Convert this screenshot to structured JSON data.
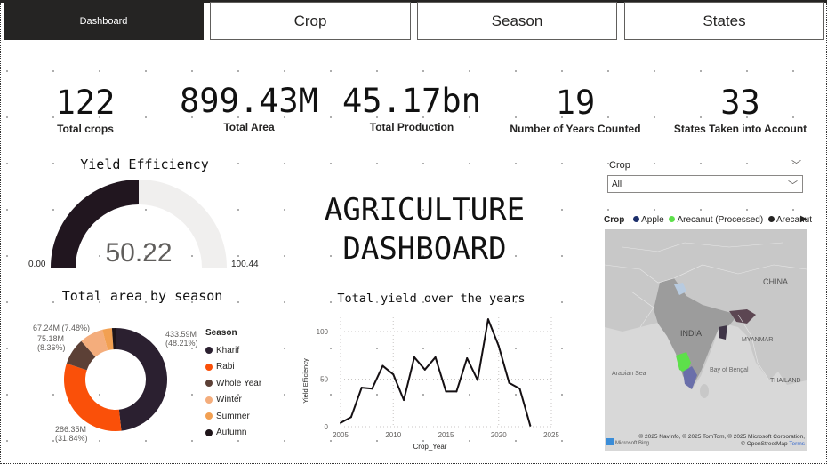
{
  "nav": {
    "dashboard": "Dashboard",
    "crop": "Crop",
    "season": "Season",
    "states": "States"
  },
  "kpis": [
    {
      "value": "122",
      "label": "Total crops"
    },
    {
      "value": "899.43M",
      "label": "Total Area"
    },
    {
      "value": "45.17bn",
      "label": "Total Production"
    },
    {
      "value": "19",
      "label": "Number of Years Counted"
    },
    {
      "value": "33",
      "label": "States Taken into Account"
    }
  ],
  "gauge": {
    "title": "Yield Efficiency",
    "value": 50.22,
    "value_label": "50.22",
    "min_label": "0.00",
    "max_label": "100.44",
    "fill_color": "#21161f",
    "track_color": "#f0efee"
  },
  "dashboard_title": {
    "line1": "AGRICULTURE",
    "line2": "DASHBOARD"
  },
  "slicer": {
    "label": "Crop",
    "value": "All"
  },
  "map": {
    "legend_title": "Crop",
    "legend_items": [
      {
        "name": "Apple",
        "color": "#1b2e6b"
      },
      {
        "name": "Arecanut (Processed)",
        "color": "#5de04a"
      },
      {
        "name": "Arecanut",
        "color": "#252423"
      }
    ],
    "labels": {
      "china": "CHINA",
      "india": "INDIA",
      "myanmar": "MYANMAR",
      "thailand": "THAILAND",
      "arabian_sea": "Arabian Sea",
      "bay_of_bengal": "Bay\nof Bengal"
    },
    "attribution": "© 2025 NavInfo, © 2025 TomTom, © 2025 Microsoft Corporation, © OpenStreetMap",
    "terms": "Terms",
    "bing": "Microsoft Bing"
  },
  "donut": {
    "title": "Total area by season",
    "legend_title": "Season",
    "labels": {
      "kharif": "433.59M\n(48.21%)",
      "rabi": "286.35M\n(31.84%)",
      "whole_year": "75.18M\n(8.36%)",
      "winter": "67.24M (7.48%)"
    }
  },
  "line_chart": {
    "title": "Total yield over the years",
    "ylabel": "Yield Efficiency",
    "xlabel": "Crop_Year"
  },
  "chart_data": [
    {
      "type": "pie",
      "title": "Total area by season",
      "legend_title": "Season",
      "categories": [
        "Kharif",
        "Rabi",
        "Whole Year",
        "Winter",
        "Summer",
        "Autumn"
      ],
      "values": [
        433.59,
        286.35,
        75.18,
        67.24,
        27.0,
        10.07
      ],
      "percent": [
        48.21,
        31.84,
        8.36,
        7.48,
        3.0,
        1.12
      ],
      "colors": [
        "#2b2030",
        "#fa5009",
        "#5c4036",
        "#f4ad7c",
        "#f2a052",
        "#1e1419"
      ]
    },
    {
      "type": "line",
      "title": "Total yield over the years",
      "xlabel": "Crop_Year",
      "ylabel": "Yield Efficiency",
      "xlim": [
        2005,
        2025
      ],
      "ylim": [
        0,
        115
      ],
      "xticks": [
        2005,
        2010,
        2015,
        2020,
        2025
      ],
      "yticks": [
        0,
        50,
        100
      ],
      "grid": true,
      "x": [
        2005,
        2006,
        2007,
        2008,
        2009,
        2010,
        2011,
        2012,
        2013,
        2014,
        2015,
        2016,
        2017,
        2018,
        2019,
        2020,
        2021,
        2022,
        2023
      ],
      "y": [
        4,
        10,
        41,
        40,
        64,
        55,
        28,
        73,
        60,
        73,
        37,
        37,
        72,
        49,
        113,
        85,
        46,
        40,
        1
      ],
      "color": "#151013"
    }
  ]
}
